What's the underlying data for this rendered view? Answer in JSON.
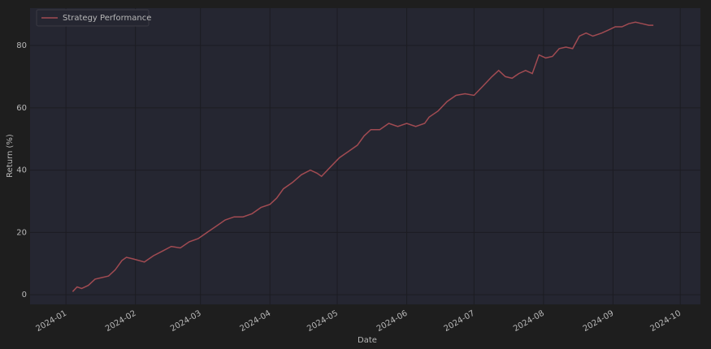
{
  "chart_data": {
    "type": "line",
    "x_label": "Date",
    "y_label": "Return (%)",
    "x": [
      4,
      6,
      8,
      11,
      14,
      17,
      20,
      23,
      26,
      28,
      31,
      36,
      40,
      44,
      48,
      52,
      56,
      60,
      64,
      68,
      72,
      76,
      80,
      84,
      88,
      92,
      95,
      98,
      102,
      106,
      110,
      113,
      115,
      119,
      123,
      127,
      131,
      134,
      137,
      141,
      145,
      149,
      153,
      157,
      161,
      163,
      167,
      171,
      175,
      179,
      183,
      187,
      191,
      194,
      197,
      200,
      203,
      206,
      209,
      212,
      215,
      218,
      221,
      224,
      227,
      230,
      233,
      236,
      240,
      243,
      246,
      249,
      252,
      255,
      258,
      261,
      263
    ],
    "series": [
      {
        "name": "Strategy Performance",
        "color": "#a14b52",
        "values": [
          1,
          2.5,
          2,
          3,
          5,
          5.5,
          6,
          8,
          11,
          12,
          11.5,
          10.5,
          12.5,
          14,
          15.5,
          15,
          17,
          18,
          20,
          22,
          24,
          25,
          25,
          26,
          28,
          29,
          31,
          34,
          36,
          38.5,
          40,
          39,
          38,
          41,
          44,
          46,
          48,
          51,
          53,
          53,
          55,
          54,
          55,
          54,
          55,
          57,
          59,
          62,
          64,
          64.5,
          64,
          67,
          70,
          72,
          70,
          69.5,
          71,
          72,
          71,
          77,
          76,
          76.5,
          79,
          79.5,
          79,
          83,
          84,
          83,
          84,
          85,
          86,
          86,
          87,
          87.5,
          87,
          86.5,
          86.5
        ]
      }
    ],
    "xlim": [
      -15,
      284
    ],
    "ylim": [
      -3.1,
      92
    ],
    "xticks": [
      {
        "value": 1,
        "label": "2024-01"
      },
      {
        "value": 32,
        "label": "2024-02"
      },
      {
        "value": 61,
        "label": "2024-03"
      },
      {
        "value": 92,
        "label": "2024-04"
      },
      {
        "value": 122,
        "label": "2024-05"
      },
      {
        "value": 153,
        "label": "2024-06"
      },
      {
        "value": 183,
        "label": "2024-07"
      },
      {
        "value": 214,
        "label": "2024-08"
      },
      {
        "value": 245,
        "label": "2024-09"
      },
      {
        "value": 275,
        "label": "2024-10"
      }
    ],
    "yticks": [
      0,
      20,
      40,
      60,
      80
    ],
    "grid": true,
    "legend": "upper left"
  }
}
